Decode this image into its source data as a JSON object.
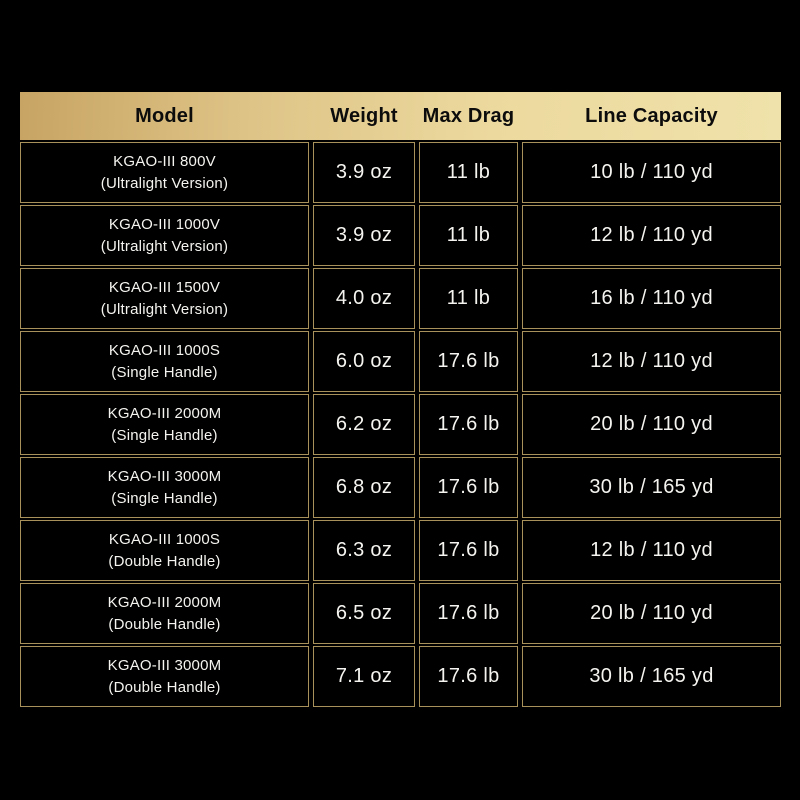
{
  "colors": {
    "page_background": "#000000",
    "cell_background": "#000000",
    "border_gold": "#a8915a",
    "header_gradient_left": "#c7a463",
    "header_gradient_right": "#efe2aa",
    "header_text": "#0c0c0c",
    "cell_text": "#f5f4f0"
  },
  "table": {
    "headers": [
      "Model",
      "Weight",
      "Max Drag",
      "Line Capacity"
    ],
    "rows": [
      {
        "model": "KGAO-III 800V",
        "variant": "(Ultralight Version)",
        "weight": "3.9 oz",
        "max_drag": "11 lb",
        "line_capacity": "10 lb / 110 yd"
      },
      {
        "model": "KGAO-III 1000V",
        "variant": "(Ultralight Version)",
        "weight": "3.9 oz",
        "max_drag": "11 lb",
        "line_capacity": "12 lb / 110 yd"
      },
      {
        "model": "KGAO-III 1500V",
        "variant": "(Ultralight Version)",
        "weight": "4.0 oz",
        "max_drag": "11 lb",
        "line_capacity": "16 lb / 110 yd"
      },
      {
        "model": "KGAO-III 1000S",
        "variant": "(Single Handle)",
        "weight": "6.0 oz",
        "max_drag": "17.6 lb",
        "line_capacity": "12 lb / 110 yd"
      },
      {
        "model": "KGAO-III 2000M",
        "variant": "(Single Handle)",
        "weight": "6.2 oz",
        "max_drag": "17.6 lb",
        "line_capacity": "20 lb / 110 yd"
      },
      {
        "model": "KGAO-III 3000M",
        "variant": "(Single Handle)",
        "weight": "6.8 oz",
        "max_drag": "17.6 lb",
        "line_capacity": "30 lb / 165 yd"
      },
      {
        "model": "KGAO-III 1000S",
        "variant": "(Double Handle)",
        "weight": "6.3 oz",
        "max_drag": "17.6 lb",
        "line_capacity": "12 lb / 110 yd"
      },
      {
        "model": "KGAO-III 2000M",
        "variant": "(Double Handle)",
        "weight": "6.5 oz",
        "max_drag": "17.6 lb",
        "line_capacity": "20 lb / 110 yd"
      },
      {
        "model": "KGAO-III 3000M",
        "variant": "(Double Handle)",
        "weight": "7.1 oz",
        "max_drag": "17.6 lb",
        "line_capacity": "30 lb / 165 yd"
      }
    ]
  },
  "chart_data": {
    "type": "table",
    "title": "",
    "columns": [
      "Model",
      "Weight",
      "Max Drag",
      "Line Capacity"
    ],
    "rows": [
      [
        "KGAO-III 800V (Ultralight Version)",
        "3.9 oz",
        "11 lb",
        "10 lb / 110 yd"
      ],
      [
        "KGAO-III 1000V (Ultralight Version)",
        "3.9 oz",
        "11 lb",
        "12 lb / 110 yd"
      ],
      [
        "KGAO-III 1500V (Ultralight Version)",
        "4.0 oz",
        "11 lb",
        "16 lb / 110 yd"
      ],
      [
        "KGAO-III 1000S (Single Handle)",
        "6.0 oz",
        "17.6 lb",
        "12 lb / 110 yd"
      ],
      [
        "KGAO-III 2000M (Single Handle)",
        "6.2 oz",
        "17.6 lb",
        "20 lb / 110 yd"
      ],
      [
        "KGAO-III 3000M (Single Handle)",
        "6.8 oz",
        "17.6 lb",
        "30 lb / 165 yd"
      ],
      [
        "KGAO-III 1000S (Double Handle)",
        "6.3 oz",
        "17.6 lb",
        "12 lb / 110 yd"
      ],
      [
        "KGAO-III 2000M (Double Handle)",
        "6.5 oz",
        "17.6 lb",
        "20 lb / 110 yd"
      ],
      [
        "KGAO-III 3000M (Double Handle)",
        "7.1 oz",
        "17.6 lb",
        "30 lb / 165 yd"
      ]
    ],
    "weights_oz": [
      3.9,
      3.9,
      4.0,
      6.0,
      6.2,
      6.8,
      6.3,
      6.5,
      7.1
    ],
    "max_drag_lb": [
      11,
      11,
      11,
      17.6,
      17.6,
      17.6,
      17.6,
      17.6,
      17.6
    ]
  }
}
